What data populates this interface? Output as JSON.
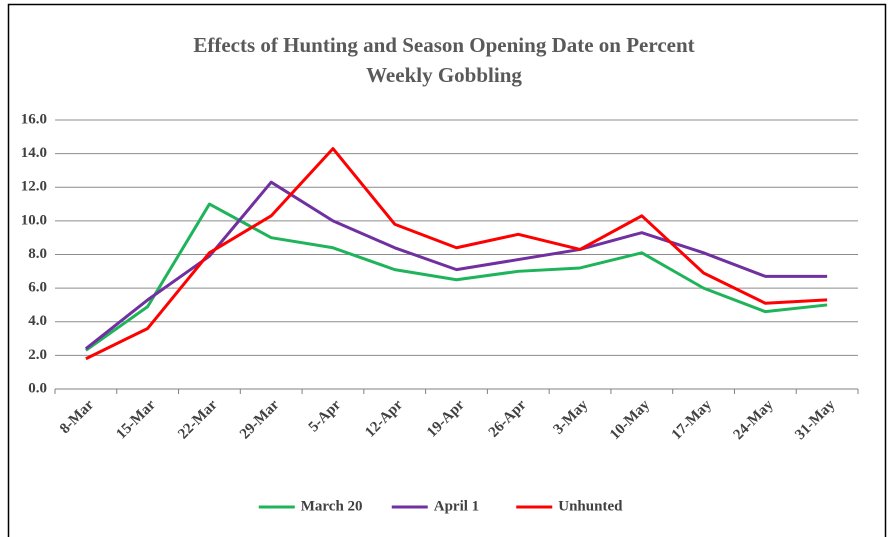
{
  "chart_data": {
    "type": "line",
    "title": "Effects of Hunting and Season Opening Date on Percent Weekly Gobbling",
    "categories": [
      "8-Mar",
      "15-Mar",
      "22-Mar",
      "29-Mar",
      "5-Apr",
      "12-Apr",
      "19-Apr",
      "26-Apr",
      "3-May",
      "10-May",
      "17-May",
      "24-May",
      "31-May"
    ],
    "series": [
      {
        "name": "March 20",
        "color": "#1fb35a",
        "values": [
          2.3,
          4.9,
          11.0,
          9.0,
          8.4,
          7.1,
          6.5,
          7.0,
          7.2,
          8.1,
          6.0,
          4.6,
          5.0
        ]
      },
      {
        "name": "April 1",
        "color": "#7030a0",
        "values": [
          2.4,
          5.3,
          7.9,
          12.3,
          10.0,
          8.4,
          7.1,
          7.7,
          8.3,
          9.3,
          8.1,
          6.7,
          6.7
        ]
      },
      {
        "name": "Unhunted",
        "color": "#ff0000",
        "values": [
          1.8,
          3.6,
          8.1,
          10.3,
          14.3,
          9.8,
          8.4,
          9.2,
          8.3,
          10.3,
          6.9,
          5.1,
          5.3
        ]
      }
    ],
    "ylim": [
      0,
      16
    ],
    "yticks": [
      {
        "value": 0,
        "label": "0.0"
      },
      {
        "value": 2,
        "label": "2.0"
      },
      {
        "value": 4,
        "label": "4.0"
      },
      {
        "value": 6,
        "label": "6.0"
      },
      {
        "value": 8,
        "label": "8.0"
      },
      {
        "value": 10,
        "label": "10.0"
      },
      {
        "value": 12,
        "label": "12.0"
      },
      {
        "value": 14,
        "label": "14.0"
      },
      {
        "value": 16,
        "label": "16.0"
      }
    ],
    "grid": true,
    "legend": "bottom"
  }
}
